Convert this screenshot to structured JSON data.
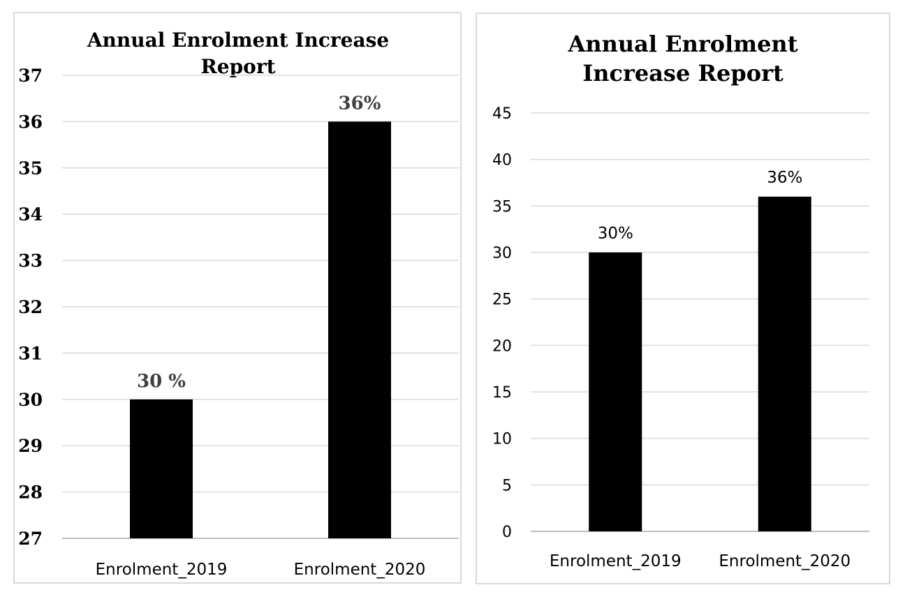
{
  "chart_data": [
    {
      "type": "bar",
      "title_lines": [
        "Annual Enrolment Increase",
        "Report"
      ],
      "categories": [
        "Enrolment_2019",
        "Enrolment_2020"
      ],
      "values": [
        30,
        36
      ],
      "data_labels": [
        "30 %",
        "36%"
      ],
      "ylim": [
        27,
        37
      ],
      "yticks": [
        27,
        28,
        29,
        30,
        31,
        32,
        33,
        34,
        35,
        36,
        37
      ],
      "grid": true,
      "bar_color": "#000000",
      "label_color": "#404040"
    },
    {
      "type": "bar",
      "title_lines": [
        "Annual Enrolment",
        "Increase Report"
      ],
      "categories": [
        "Enrolment_2019",
        "Enrolment_2020"
      ],
      "values": [
        30,
        36
      ],
      "data_labels": [
        "30%",
        "36%"
      ],
      "ylim": [
        0,
        45
      ],
      "yticks": [
        0,
        5,
        10,
        15,
        20,
        25,
        30,
        35,
        40,
        45
      ],
      "grid": true,
      "bar_color": "#000000",
      "label_color": "#000000"
    }
  ]
}
